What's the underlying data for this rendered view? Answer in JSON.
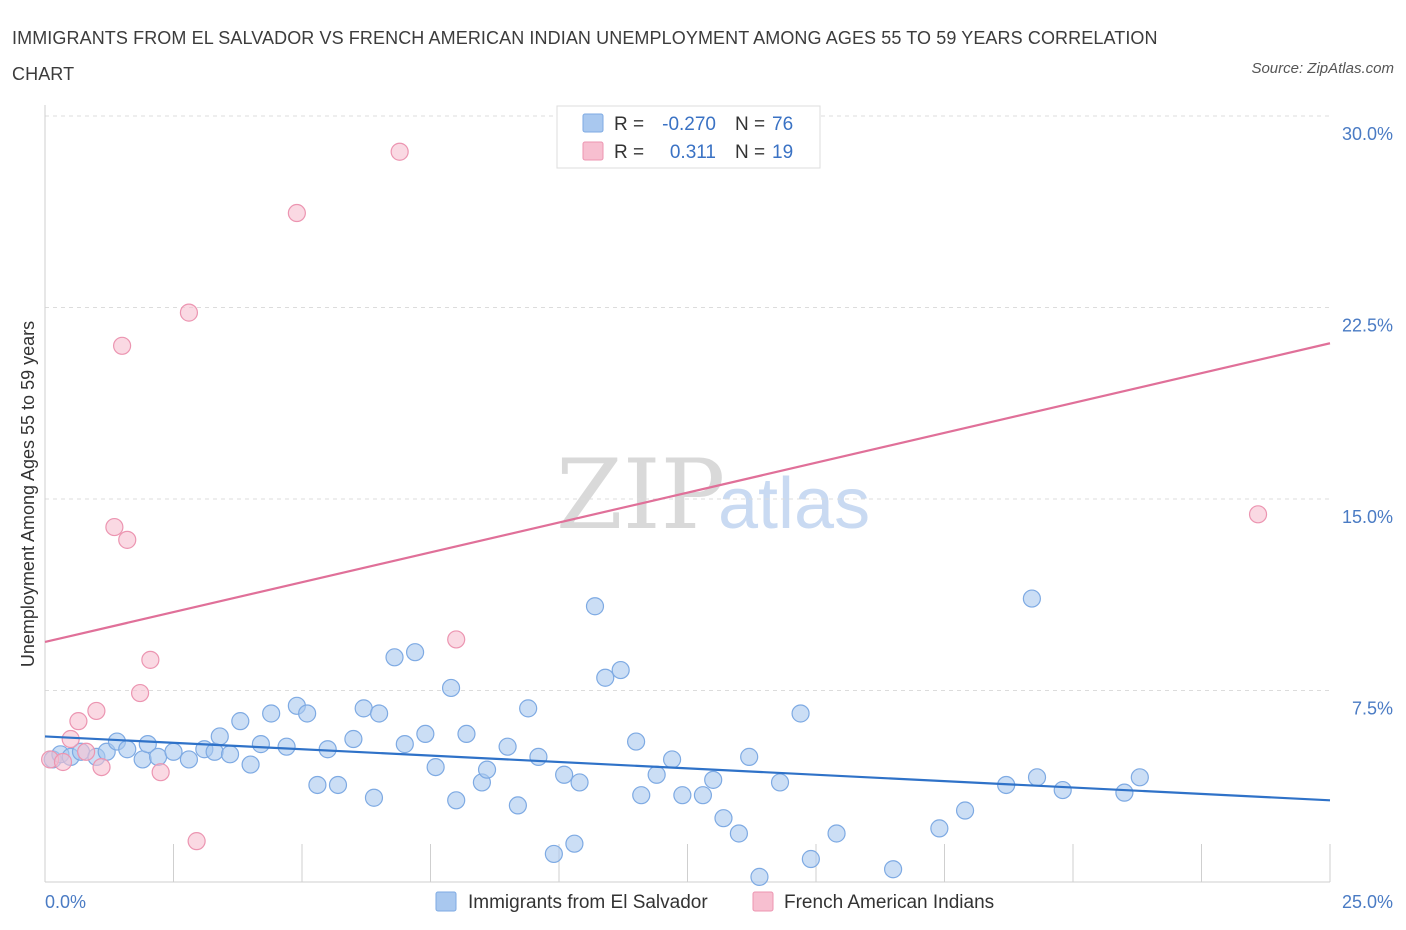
{
  "title": "IMMIGRANTS FROM EL SALVADOR VS FRENCH AMERICAN INDIAN UNEMPLOYMENT AMONG AGES 55 TO 59 YEARS CORRELATION CHART",
  "source": "Source: ZipAtlas.com",
  "watermark": {
    "zip": "ZIP",
    "atlas": "atlas"
  },
  "legend_box": {
    "rows": [
      {
        "r_label": "R =",
        "r_value": "-0.270",
        "n_label": "N =",
        "n_value": "76"
      },
      {
        "r_label": "R =",
        "r_value": "0.311",
        "n_label": "N =",
        "n_value": "19"
      }
    ]
  },
  "chart_data": {
    "type": "scatter",
    "title": "IMMIGRANTS FROM EL SALVADOR VS FRENCH AMERICAN INDIAN UNEMPLOYMENT AMONG AGES 55 TO 59 YEARS CORRELATION CHART",
    "xlabel": "",
    "ylabel": "Unemployment Among Ages 55 to 59 years",
    "xlim": [
      0,
      25
    ],
    "ylim": [
      0,
      30
    ],
    "x_tick_labels": [
      "0.0%",
      "25.0%"
    ],
    "y_ticks": [
      7.5,
      15.0,
      22.5,
      30.0
    ],
    "y_tick_labels": [
      "7.5%",
      "15.0%",
      "22.5%",
      "30.0%"
    ],
    "grid": true,
    "legend_position": "bottom",
    "series": [
      {
        "name": "Immigrants from El Salvador",
        "color": "#a9c8ef",
        "stroke": "#7eaae3",
        "trend_color": "#2f72c8",
        "trend": {
          "x": [
            0,
            25
          ],
          "y": [
            5.7,
            3.2
          ]
        },
        "points": [
          [
            0.15,
            4.8
          ],
          [
            0.3,
            5.0
          ],
          [
            0.5,
            4.9
          ],
          [
            0.7,
            5.1
          ],
          [
            1.0,
            4.9
          ],
          [
            1.2,
            5.1
          ],
          [
            1.4,
            5.5
          ],
          [
            1.6,
            5.2
          ],
          [
            1.9,
            4.8
          ],
          [
            2.0,
            5.4
          ],
          [
            2.2,
            4.9
          ],
          [
            2.5,
            5.1
          ],
          [
            2.8,
            4.8
          ],
          [
            3.1,
            5.2
          ],
          [
            3.3,
            5.1
          ],
          [
            3.4,
            5.7
          ],
          [
            3.6,
            5.0
          ],
          [
            3.8,
            6.3
          ],
          [
            4.0,
            4.6
          ],
          [
            4.2,
            5.4
          ],
          [
            4.4,
            6.6
          ],
          [
            4.7,
            5.3
          ],
          [
            4.9,
            6.9
          ],
          [
            5.1,
            6.6
          ],
          [
            5.3,
            3.8
          ],
          [
            5.5,
            5.2
          ],
          [
            5.7,
            3.8
          ],
          [
            6.0,
            5.6
          ],
          [
            6.2,
            6.8
          ],
          [
            6.4,
            3.3
          ],
          [
            6.5,
            6.6
          ],
          [
            6.8,
            8.8
          ],
          [
            7.0,
            5.4
          ],
          [
            7.2,
            9.0
          ],
          [
            7.4,
            5.8
          ],
          [
            7.6,
            4.5
          ],
          [
            7.9,
            7.6
          ],
          [
            8.0,
            3.2
          ],
          [
            8.2,
            5.8
          ],
          [
            8.5,
            3.9
          ],
          [
            8.6,
            4.4
          ],
          [
            9.0,
            5.3
          ],
          [
            9.2,
            3.0
          ],
          [
            9.4,
            6.8
          ],
          [
            9.6,
            4.9
          ],
          [
            9.9,
            1.1
          ],
          [
            10.1,
            4.2
          ],
          [
            10.3,
            1.5
          ],
          [
            10.4,
            3.9
          ],
          [
            10.7,
            10.8
          ],
          [
            10.9,
            8.0
          ],
          [
            11.2,
            8.3
          ],
          [
            11.5,
            5.5
          ],
          [
            11.6,
            3.4
          ],
          [
            11.9,
            4.2
          ],
          [
            12.2,
            4.8
          ],
          [
            12.4,
            3.4
          ],
          [
            12.8,
            3.4
          ],
          [
            13.0,
            4.0
          ],
          [
            13.2,
            2.5
          ],
          [
            13.5,
            1.9
          ],
          [
            13.7,
            4.9
          ],
          [
            13.9,
            0.2
          ],
          [
            14.3,
            3.9
          ],
          [
            14.7,
            6.6
          ],
          [
            14.9,
            0.9
          ],
          [
            15.4,
            1.9
          ],
          [
            16.5,
            0.5
          ],
          [
            17.4,
            2.1
          ],
          [
            17.9,
            2.8
          ],
          [
            18.7,
            3.8
          ],
          [
            19.2,
            11.1
          ],
          [
            19.3,
            4.1
          ],
          [
            19.8,
            3.6
          ],
          [
            21.0,
            3.5
          ],
          [
            21.3,
            4.1
          ]
        ]
      },
      {
        "name": "French American Indians",
        "color": "#f7bfd0",
        "stroke": "#ec95b1",
        "trend_color": "#e07099",
        "trend": {
          "x": [
            0,
            25
          ],
          "y": [
            9.4,
            21.1
          ]
        },
        "points": [
          [
            0.1,
            4.8
          ],
          [
            0.35,
            4.7
          ],
          [
            0.5,
            5.6
          ],
          [
            0.65,
            6.3
          ],
          [
            0.8,
            5.1
          ],
          [
            1.0,
            6.7
          ],
          [
            1.1,
            4.5
          ],
          [
            1.35,
            13.9
          ],
          [
            1.5,
            21.0
          ],
          [
            1.6,
            13.4
          ],
          [
            1.85,
            7.4
          ],
          [
            2.05,
            8.7
          ],
          [
            2.25,
            4.3
          ],
          [
            2.8,
            22.3
          ],
          [
            2.95,
            1.6
          ],
          [
            4.9,
            26.2
          ],
          [
            6.9,
            28.6
          ],
          [
            8.0,
            9.5
          ],
          [
            23.6,
            14.4
          ]
        ]
      }
    ]
  }
}
